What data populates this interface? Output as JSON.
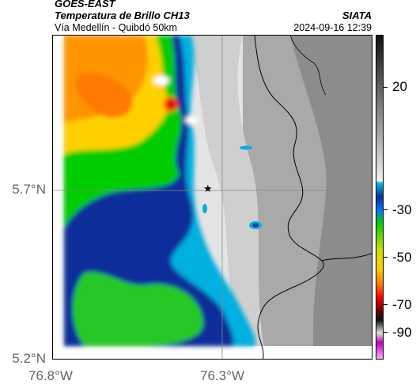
{
  "header": {
    "satellite": "GOES-EAST",
    "product": "Temperatura de Brillo CH13",
    "route": "Vía Medellín - Quibdó 50km",
    "org": "SIATA",
    "datetime": "2024-09-16 12:39"
  },
  "axes": {
    "y_ticks": [
      "5.7°N",
      "5.2°N"
    ],
    "x_ticks": [
      "76.8°W",
      "76.3°W"
    ]
  },
  "colorbar": {
    "ticks": [
      "20",
      "-30",
      "-50",
      "-70",
      "-90"
    ],
    "units_hint": "brightness temperature"
  },
  "map": {
    "marker": "star",
    "marker_symbol": "★"
  }
}
